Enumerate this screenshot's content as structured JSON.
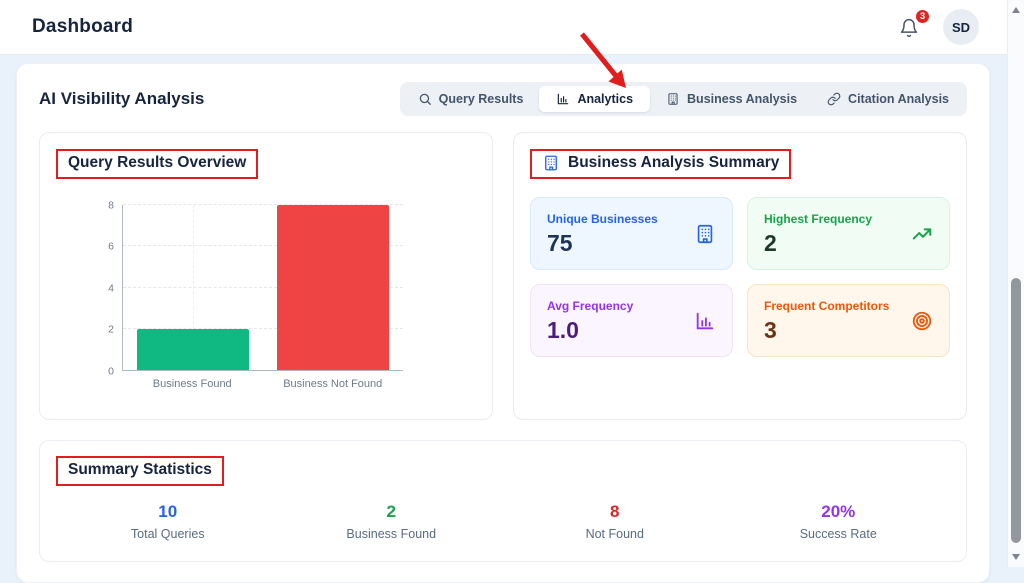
{
  "header": {
    "title": "Dashboard",
    "notification_count": "3",
    "avatar_initials": "SD"
  },
  "page": {
    "section_title": "AI Visibility Analysis",
    "tabs": [
      {
        "label": "Query Results",
        "icon": "search-icon",
        "active": false
      },
      {
        "label": "Analytics",
        "icon": "bar-chart-icon",
        "active": true
      },
      {
        "label": "Business Analysis",
        "icon": "building-icon",
        "active": false
      },
      {
        "label": "Citation Analysis",
        "icon": "link-icon",
        "active": false
      }
    ]
  },
  "query_results_card": {
    "title": "Query Results Overview"
  },
  "chart_data": {
    "type": "bar",
    "title": "Query Results Overview",
    "categories": [
      "Business Found",
      "Business Not Found"
    ],
    "values": [
      2,
      8
    ],
    "colors": [
      "#10b981",
      "#ef4444"
    ],
    "xlabel": "",
    "ylabel": "",
    "ylim": [
      0,
      8
    ],
    "yticks": [
      0,
      2,
      4,
      6,
      8
    ],
    "grid": true,
    "legend": false
  },
  "business_summary_card": {
    "title": "Business Analysis Summary",
    "stats": [
      {
        "label": "Unique Businesses",
        "value": "75",
        "icon": "building-icon",
        "accent": "#2563eb",
        "bg": "#eef6ff",
        "border": "#d9e8fb",
        "value_color": "#1e3456"
      },
      {
        "label": "Highest Frequency",
        "value": "2",
        "icon": "trending-up-icon",
        "accent": "#16a34a",
        "bg": "#f1fdf4",
        "border": "#d9f3e0",
        "value_color": "#1d3a26"
      },
      {
        "label": "Avg Frequency",
        "value": "1.0",
        "icon": "bar-chart-icon",
        "accent": "#9333ea",
        "bg": "#faf5ff",
        "border": "#f0e4fb",
        "value_color": "#4c1d7a"
      },
      {
        "label": "Frequent Competitors",
        "value": "3",
        "icon": "target-icon",
        "accent": "#ea580c",
        "bg": "#fff7ec",
        "border": "#fbe3c4",
        "value_color": "#6b3417"
      }
    ]
  },
  "summary_statistics": {
    "title": "Summary Statistics",
    "stats": [
      {
        "value": "10",
        "label": "Total Queries",
        "color": "#2563eb"
      },
      {
        "value": "2",
        "label": "Business Found",
        "color": "#16a34a"
      },
      {
        "value": "8",
        "label": "Not Found",
        "color": "#dc2626"
      },
      {
        "value": "20%",
        "label": "Success Rate",
        "color": "#9333ea"
      }
    ]
  },
  "annotations": {
    "box_color": "#e11d1d",
    "arrow_color": "#e11d1d",
    "arrow_target": "Analytics tab"
  }
}
